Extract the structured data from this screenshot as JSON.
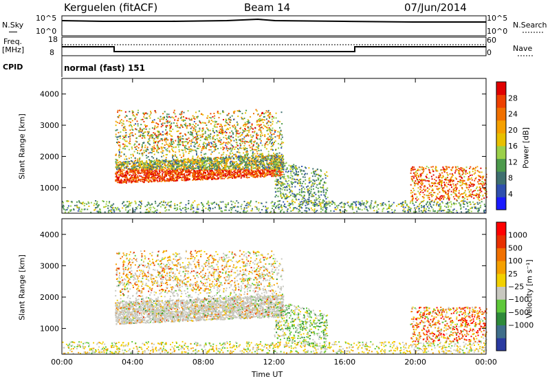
{
  "header": {
    "station": "Kerguelen (fitACF)",
    "beam": "Beam 14",
    "date": "07/Jun/2014"
  },
  "left_labels": {
    "nsky": "N.Sky",
    "freq_line1": "Freq.",
    "freq_line2": "[MHz]",
    "cpid": "CPID"
  },
  "right_labels": {
    "nsearch": "N.Search",
    "nave": "Nave"
  },
  "panel_ticks": {
    "nsky_left": [
      "10^5",
      "10^0"
    ],
    "nsky_right": [
      "10^5",
      "10^0"
    ],
    "freq_left": [
      "18",
      "8"
    ],
    "nave_right": [
      "60",
      "0"
    ]
  },
  "cpid_text": "normal (fast) 151",
  "chart_data": [
    {
      "type": "heatmap",
      "title": "",
      "ylabel": "Slant Range [km]",
      "xlabel": "Time UT",
      "x_ticks": [
        "00:00",
        "04:00",
        "08:00",
        "12:00",
        "16:00",
        "20:00",
        "00:00"
      ],
      "y_ticks": [
        "1000",
        "2000",
        "3000",
        "4000"
      ],
      "xlim": [
        "00:00",
        "24:00"
      ],
      "ylim": [
        180,
        4500
      ],
      "colorbar": {
        "label": "Power [dB]",
        "ticks": [
          "4",
          "8",
          "12",
          "16",
          "20",
          "24",
          "28"
        ],
        "range": [
          0,
          30
        ],
        "colors": [
          "#1a1aff",
          "#2f4fae",
          "#3e6f6f",
          "#4c9a4c",
          "#9bd04a",
          "#e8c000",
          "#f5a000",
          "#f07000",
          "#ee4000",
          "#e00000"
        ]
      }
    },
    {
      "type": "heatmap",
      "title": "",
      "ylabel": "Slant Range [km]",
      "xlabel": "Time UT",
      "x_ticks": [
        "00:00",
        "04:00",
        "08:00",
        "12:00",
        "16:00",
        "20:00",
        "00:00"
      ],
      "y_ticks": [
        "1000",
        "2000",
        "3000",
        "4000"
      ],
      "xlim": [
        "00:00",
        "24:00"
      ],
      "ylim": [
        180,
        4500
      ],
      "colorbar": {
        "label": "Velocity [m s⁻¹]",
        "ticks": [
          "1000",
          "500",
          "100",
          "25",
          "−25",
          "−100",
          "−500",
          "−1000"
        ],
        "colors": [
          "#2a3aa0",
          "#3f6e8a",
          "#2e8a3a",
          "#5ec83a",
          "#c8c8c0",
          "#f2d000",
          "#f5a000",
          "#f07000",
          "#e83000",
          "#ff0000"
        ]
      }
    }
  ]
}
